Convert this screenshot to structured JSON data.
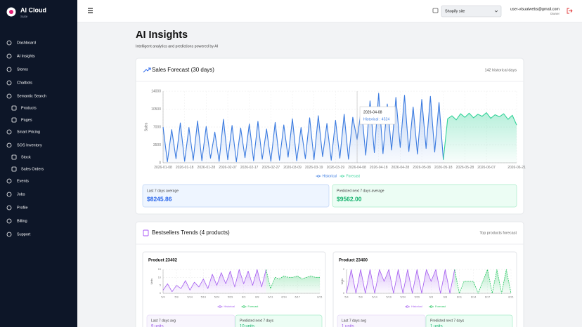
{
  "sidebar": {
    "brand": "AI Cloud",
    "tagline": "Suite",
    "nav": [
      {
        "label": "Dashboard"
      },
      {
        "label": "AI Insights"
      },
      {
        "label": "Stores"
      },
      {
        "label": "Chatbots"
      },
      {
        "label": "Semantic Search",
        "children": [
          "Products",
          "Pages"
        ]
      },
      {
        "label": "Smart Pricing"
      },
      {
        "label": "SOS Inventory",
        "children": [
          "Stock",
          "Sales Orders"
        ]
      },
      {
        "label": "Events"
      },
      {
        "label": "Jobs"
      },
      {
        "label": "Profile"
      },
      {
        "label": "Billing"
      },
      {
        "label": "Support"
      }
    ]
  },
  "topbar": {
    "store_select": "Shopify site",
    "user_email": "user-visualwebs@gmail.com",
    "user_role": "Owner"
  },
  "page": {
    "title": "AI Insights",
    "subtitle": "Intelligent analytics and predictions powered by AI"
  },
  "sales_forecast": {
    "title": "Sales Forecast (30 days)",
    "subtitle": "142 historical days",
    "stats": [
      {
        "label": "Last 7 days average",
        "value": "$8245.86"
      },
      {
        "label": "Predicted next 7 days average",
        "value": "$9562.00"
      }
    ]
  },
  "bestsellers": {
    "title": "Bestsellers Trends (4 products)",
    "subtitle": "Top products forecast",
    "products": [
      {
        "stats": [
          {
            "label": "Last 7 days avg",
            "value": "9 units"
          },
          {
            "label": "Predicted next 7 days",
            "value": "10 units"
          }
        ]
      },
      {
        "stats": [
          {
            "label": "Last 7 days avg",
            "value": "1 units"
          },
          {
            "label": "Predicted next 7 days",
            "value": "1 units"
          }
        ]
      }
    ]
  },
  "chart_data": [
    {
      "type": "line",
      "y_label": "Sales",
      "ylim": [
        0,
        14000
      ],
      "yticks": [
        0,
        3500,
        7000,
        10500,
        14000
      ],
      "grid": true,
      "categories": [
        "2026-01-08",
        null,
        null,
        null,
        null,
        "2026-01-18",
        null,
        null,
        null,
        null,
        "2026-01-28",
        null,
        null,
        null,
        null,
        "2026-02-07",
        null,
        null,
        null,
        null,
        "2026-02-17",
        null,
        null,
        null,
        null,
        "2026-02-27",
        null,
        null,
        null,
        null,
        "2026-03-09",
        null,
        null,
        null,
        null,
        "2026-03-19",
        null,
        null,
        null,
        null,
        "2026-03-29",
        null,
        null,
        null,
        null,
        "2026-04-08",
        null,
        null,
        null,
        null,
        "2026-04-18",
        null,
        null,
        null,
        null,
        "2026-04-28",
        null,
        null,
        null,
        null,
        "2026-05-08",
        null,
        null,
        null,
        null,
        "2026-05-18",
        null,
        null,
        null,
        null,
        "2026-05-28",
        null,
        null,
        null,
        null,
        "2026-06-07",
        null,
        null,
        null,
        null,
        null,
        null,
        "2026-06-21"
      ],
      "series": [
        {
          "name": "Historical",
          "color": "#3b7be0",
          "line_style": "solid",
          "values": [
            7000,
            200,
            6500,
            800,
            7800,
            300,
            6900,
            500,
            8200,
            400,
            7100,
            900,
            6000,
            300,
            8500,
            600,
            7300,
            200,
            6800,
            1000,
            7600,
            400,
            8100,
            700,
            6600,
            300,
            7900,
            500,
            7400,
            1100,
            8600,
            400,
            6900,
            800,
            8800,
            600,
            9200,
            1200,
            7700,
            500,
            8300,
            900,
            9500,
            700,
            8900,
            4524,
            10800,
            1500,
            12100,
            2000,
            13600,
            1800,
            11500,
            2500,
            12800,
            3000,
            13200,
            2200,
            10900,
            1700,
            12400,
            2800,
            13000,
            2100,
            11800,
            600,
            null,
            null,
            null,
            null,
            null,
            null,
            null,
            null,
            null,
            null,
            null,
            null,
            null,
            null,
            null,
            null,
            null
          ]
        },
        {
          "name": "Forecast",
          "color": "#34d399",
          "line_style": "solid",
          "values": [
            null,
            null,
            null,
            null,
            null,
            null,
            null,
            null,
            null,
            null,
            null,
            null,
            null,
            null,
            null,
            null,
            null,
            null,
            null,
            null,
            null,
            null,
            null,
            null,
            null,
            null,
            null,
            null,
            null,
            null,
            null,
            null,
            null,
            null,
            null,
            null,
            null,
            null,
            null,
            null,
            null,
            null,
            null,
            null,
            null,
            null,
            null,
            null,
            null,
            null,
            null,
            null,
            null,
            null,
            null,
            null,
            null,
            null,
            null,
            null,
            null,
            null,
            null,
            null,
            null,
            600,
            8600,
            9200,
            8400,
            9600,
            8900,
            9700,
            8800,
            9500,
            9100,
            9800,
            8700,
            9400,
            9000,
            9600,
            8500,
            9300,
            7400
          ]
        }
      ],
      "tooltip": {
        "category": "2026-04-08",
        "text": "Historical : 4524"
      }
    },
    {
      "type": "line",
      "title": "Product 23402",
      "y_label": "Units",
      "ylim": [
        0,
        15
      ],
      "yticks": [
        0,
        5,
        10,
        15
      ],
      "grid": true,
      "categories": [
        "5/4",
        null,
        null,
        "5/9",
        null,
        null,
        "5/14",
        null,
        null,
        "5/19",
        null,
        null,
        "5/24",
        null,
        null,
        "5/29",
        null,
        null,
        "6/3",
        null,
        null,
        "6/8",
        null,
        null,
        "6/11",
        null,
        null,
        "6/14",
        null,
        null,
        "6/17",
        null,
        null,
        null,
        null,
        "6/21"
      ],
      "series": [
        {
          "name": "Historical",
          "color": "#a55ef0",
          "line_style": "solid",
          "values": [
            2,
            6,
            1,
            5,
            3,
            8,
            2,
            7,
            4,
            9,
            3,
            12,
            5,
            13,
            6,
            14,
            4,
            15,
            6,
            14,
            5,
            15,
            4,
            15,
            null,
            null,
            null,
            null,
            null,
            null,
            null,
            null,
            null,
            null,
            null,
            null
          ]
        },
        {
          "name": "Forecast",
          "color": "#22c55e",
          "line_style": "dashed",
          "values": [
            null,
            null,
            null,
            null,
            null,
            null,
            null,
            null,
            null,
            null,
            null,
            null,
            null,
            null,
            null,
            null,
            null,
            null,
            null,
            null,
            null,
            null,
            null,
            15,
            3,
            10,
            9,
            11,
            10,
            10,
            11,
            9,
            10,
            11,
            10,
            10
          ]
        }
      ]
    },
    {
      "type": "line",
      "title": "Product 23400",
      "y_label": "Units",
      "ylim": [
        0,
        2
      ],
      "yticks": [
        0,
        1,
        2
      ],
      "grid": true,
      "categories": [
        "5/4",
        null,
        null,
        "5/9",
        null,
        null,
        "5/14",
        null,
        null,
        "5/19",
        null,
        null,
        "5/24",
        null,
        null,
        "5/29",
        null,
        null,
        "6/3",
        null,
        null,
        "6/8",
        null,
        null,
        "6/11",
        null,
        null,
        "6/14",
        null,
        null,
        "6/17",
        null,
        null,
        null,
        null,
        "6/21"
      ],
      "series": [
        {
          "name": "Historical",
          "color": "#a55ef0",
          "line_style": "solid",
          "values": [
            0,
            2,
            0,
            2,
            0,
            2,
            0,
            2,
            1,
            2,
            0,
            2,
            0,
            2,
            0,
            2,
            0,
            2,
            1,
            2,
            0,
            2,
            0,
            2,
            null,
            null,
            null,
            null,
            null,
            null,
            null,
            null,
            null,
            null,
            null,
            null
          ]
        },
        {
          "name": "Forecast",
          "color": "#22c55e",
          "line_style": "dashed",
          "values": [
            null,
            null,
            null,
            null,
            null,
            null,
            null,
            null,
            null,
            null,
            null,
            null,
            null,
            null,
            null,
            null,
            null,
            null,
            null,
            null,
            null,
            null,
            null,
            2,
            0,
            1,
            1,
            1,
            0,
            1,
            2,
            0,
            2,
            0,
            2,
            0
          ]
        }
      ]
    }
  ]
}
